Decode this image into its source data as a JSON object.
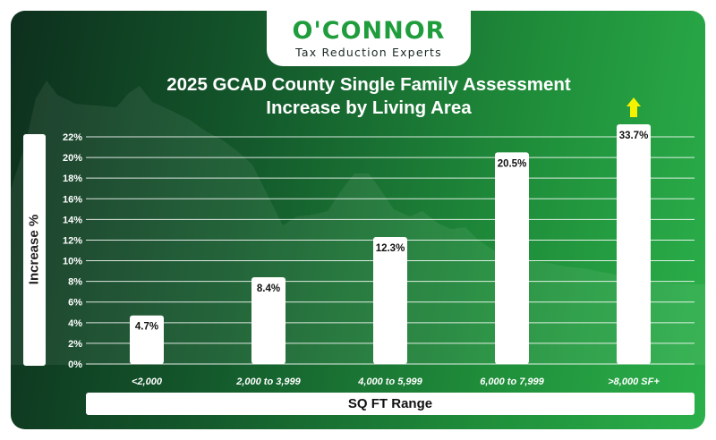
{
  "logo": {
    "brand": "O'CONNOR",
    "tagline": "Tax Reduction Experts"
  },
  "colors": {
    "bar": "#ffffff",
    "arrow": "#f5f200",
    "brand_green": "#1f9d3c",
    "grid": "#ffffff"
  },
  "chart_data": {
    "type": "bar",
    "title": "2025 GCAD County Single Family Assessment Increase by Living Area",
    "title_lines": [
      "2025 GCAD County Single Family Assessment",
      "Increase by Living Area"
    ],
    "xlabel": "SQ FT Range",
    "ylabel": "Increase %",
    "categories": [
      "<2,000",
      "2,000 to 3,999",
      "4,000 to 5,999",
      "6,000 to 7,999",
      ">8,000 SF+"
    ],
    "values": [
      4.7,
      8.4,
      12.3,
      20.5,
      33.7
    ],
    "data_labels": [
      "4.7%",
      "8.4%",
      "12.3%",
      "20.5%",
      "33.7%"
    ],
    "ylim": [
      0,
      22
    ],
    "yticks": [
      0,
      2,
      4,
      6,
      8,
      10,
      12,
      14,
      16,
      18,
      20,
      22
    ],
    "ytick_labels": [
      "0%",
      "2%",
      "4%",
      "6%",
      "8%",
      "10%",
      "12%",
      "14%",
      "16%",
      "18%",
      "20%",
      "22%"
    ],
    "grid": true,
    "clipped_bar_indicator": "arrow-up"
  }
}
